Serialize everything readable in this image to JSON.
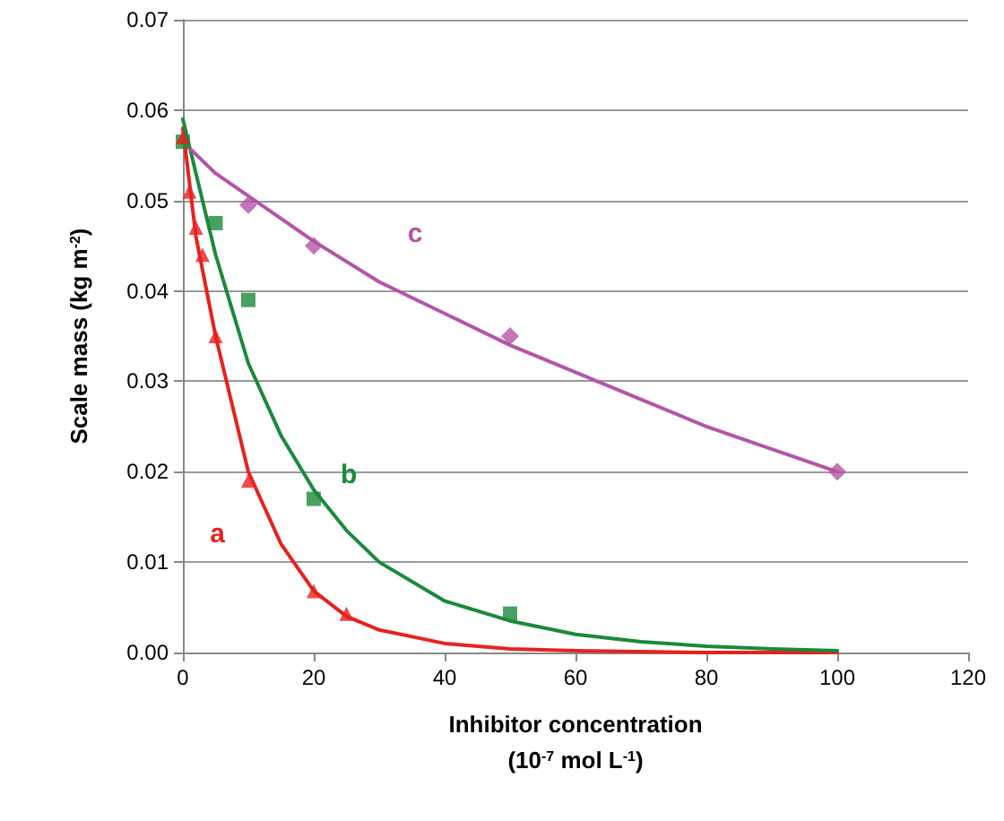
{
  "chart_data": {
    "type": "scatter",
    "xlabel": "Inhibitor concentration\n(10$^{-7}$ mol L$^{-1}$)",
    "ylabel": "Scale mass (kg m$^{-2}$)",
    "xlim": [
      0,
      120
    ],
    "xticks": [
      0,
      20,
      40,
      60,
      80,
      100,
      120
    ],
    "ylim": [
      0,
      0.07
    ],
    "yticks": [
      {
        "value": 0,
        "label": "0.00"
      },
      {
        "value": 0.01,
        "label": "0.01"
      },
      {
        "value": 0.02,
        "label": "0.02"
      },
      {
        "value": 0.03,
        "label": "0.03"
      },
      {
        "value": 0.04,
        "label": "0.04"
      },
      {
        "value": 0.05,
        "label": "0.05"
      },
      {
        "value": 0.06,
        "label": "0.06"
      },
      {
        "value": 0.07,
        "label": "0.07"
      }
    ],
    "grid": "y",
    "series": [
      {
        "type": "line",
        "name": "a",
        "marker": "none",
        "color": "#e8211f",
        "x": [
          0,
          2,
          5,
          10,
          15,
          20,
          25,
          30,
          40,
          50,
          60,
          80,
          100
        ],
        "values": [
          0.058,
          0.046,
          0.035,
          0.02,
          0.012,
          0.0068,
          0.004,
          0.0025,
          0.001,
          0.0004,
          0.0002,
          0.0,
          0.0
        ]
      },
      {
        "type": "line",
        "name": "b",
        "marker": "none",
        "color": "#1a8a3a",
        "x": [
          0,
          5,
          10,
          15,
          20,
          25,
          30,
          40,
          50,
          60,
          70,
          80,
          90,
          100
        ],
        "values": [
          0.059,
          0.044,
          0.032,
          0.024,
          0.018,
          0.0135,
          0.01,
          0.0057,
          0.0035,
          0.002,
          0.0012,
          0.0007,
          0.0004,
          0.0002
        ]
      },
      {
        "type": "line",
        "name": "c",
        "marker": "none",
        "color": "#b455a8",
        "x": [
          0,
          5,
          10,
          20,
          30,
          40,
          50,
          60,
          70,
          80,
          90,
          100
        ],
        "values": [
          0.0565,
          0.053,
          0.0505,
          0.0455,
          0.041,
          0.0375,
          0.034,
          0.031,
          0.028,
          0.025,
          0.0225,
          0.02
        ]
      },
      {
        "marker": "diamond",
        "color": "#b455a8",
        "x": [
          10,
          20,
          50,
          100
        ],
        "values": [
          0.0495,
          0.045,
          0.035,
          0.02
        ]
      },
      {
        "marker": "square",
        "color": "#1a8a3a",
        "x": [
          0,
          5,
          10,
          20,
          50
        ],
        "values": [
          0.0565,
          0.0475,
          0.039,
          0.017,
          0.0043
        ]
      },
      {
        "marker": "triangle",
        "color": "#e8211f",
        "x": [
          0,
          1,
          2,
          3,
          5,
          10,
          20,
          25
        ],
        "values": [
          0.057,
          0.051,
          0.047,
          0.044,
          0.035,
          0.019,
          0.0068,
          0.0043
        ]
      }
    ]
  }
}
